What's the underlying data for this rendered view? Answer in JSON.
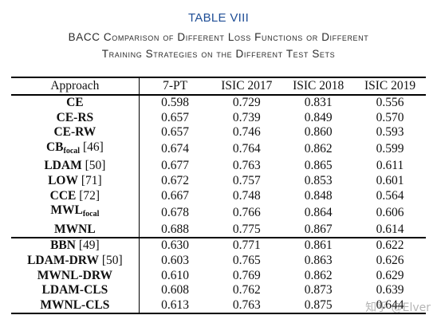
{
  "caption": {
    "number": "TABLE VIII",
    "title_line1": "BACC Comparison of Different Loss Functions or Different",
    "title_line2": "Training Strategies on the Different Test Sets"
  },
  "table": {
    "headers": [
      "Approach",
      "7-PT",
      "ISIC 2017",
      "ISIC 2018",
      "ISIC 2019"
    ],
    "group1": [
      {
        "name": "CE",
        "sub": "",
        "ref": "",
        "values": [
          "0.598",
          "0.729",
          "0.831",
          "0.556"
        ],
        "bold": [
          false,
          false,
          false,
          false
        ]
      },
      {
        "name": "CE-RS",
        "sub": "",
        "ref": "",
        "values": [
          "0.657",
          "0.739",
          "0.849",
          "0.570"
        ],
        "bold": [
          false,
          false,
          false,
          false
        ]
      },
      {
        "name": "CE-RW",
        "sub": "",
        "ref": "",
        "values": [
          "0.657",
          "0.746",
          "0.860",
          "0.593"
        ],
        "bold": [
          false,
          false,
          false,
          false
        ]
      },
      {
        "name": "CB",
        "sub": "focal",
        "ref": "[46]",
        "values": [
          "0.674",
          "0.764",
          "0.862",
          "0.599"
        ],
        "bold": [
          false,
          false,
          false,
          false
        ]
      },
      {
        "name": "LDAM",
        "sub": "",
        "ref": "[50]",
        "values": [
          "0.677",
          "0.763",
          "0.865",
          "0.611"
        ],
        "bold": [
          false,
          false,
          false,
          false
        ]
      },
      {
        "name": "LOW",
        "sub": "",
        "ref": "[71]",
        "values": [
          "0.672",
          "0.757",
          "0.853",
          "0.601"
        ],
        "bold": [
          false,
          false,
          false,
          false
        ]
      },
      {
        "name": "CCE",
        "sub": "",
        "ref": "[72]",
        "values": [
          "0.667",
          "0.748",
          "0.848",
          "0.564"
        ],
        "bold": [
          false,
          false,
          false,
          false
        ]
      },
      {
        "name": "MWL",
        "sub": "focal",
        "ref": "",
        "values": [
          "0.678",
          "0.766",
          "0.864",
          "0.606"
        ],
        "bold": [
          false,
          false,
          false,
          false
        ]
      },
      {
        "name": "MWNL",
        "sub": "",
        "ref": "",
        "values": [
          "0.688",
          "0.775",
          "0.867",
          "0.614"
        ],
        "bold": [
          true,
          true,
          false,
          false
        ]
      }
    ],
    "group2": [
      {
        "name": "BBN",
        "sub": "",
        "ref": "[49]",
        "values": [
          "0.630",
          "0.771",
          "0.861",
          "0.622"
        ],
        "bold": [
          false,
          false,
          false,
          false
        ]
      },
      {
        "name": "LDAM-DRW",
        "sub": "",
        "ref": "[50]",
        "values": [
          "0.603",
          "0.765",
          "0.863",
          "0.626"
        ],
        "bold": [
          false,
          false,
          false,
          false
        ]
      },
      {
        "name": "MWNL-DRW",
        "sub": "",
        "ref": "",
        "values": [
          "0.610",
          "0.769",
          "0.862",
          "0.629"
        ],
        "bold": [
          false,
          false,
          false,
          false
        ]
      },
      {
        "name": "LDAM-CLS",
        "sub": "",
        "ref": "",
        "values": [
          "0.608",
          "0.762",
          "0.873",
          "0.639"
        ],
        "bold": [
          false,
          false,
          false,
          false
        ]
      },
      {
        "name": "MWNL-CLS",
        "sub": "",
        "ref": "",
        "values": [
          "0.613",
          "0.763",
          "0.875",
          "0.644"
        ],
        "bold": [
          false,
          false,
          true,
          true
        ]
      }
    ]
  },
  "watermark": "知乎 @Elver"
}
